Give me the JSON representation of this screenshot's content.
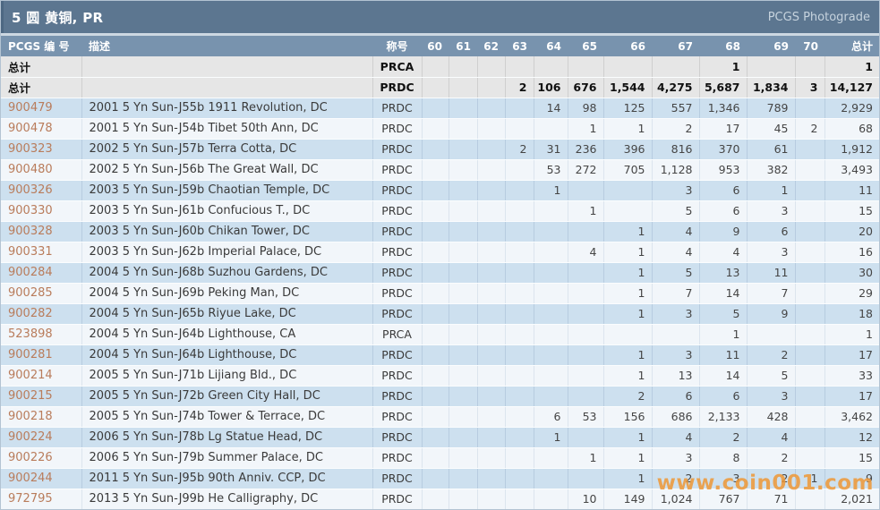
{
  "title": "5 圆 黄铜, PR",
  "brand": "PCGS Photograde",
  "watermark": "www.coin001.com",
  "colors": {
    "titlebar": "#5c7690",
    "header": "#7893ae",
    "row_blue": "#cde0ef",
    "row_light": "#f2f6fa",
    "summary_bg": "#e6e6e6",
    "pcgs_link": "#b97c5b",
    "watermark": "#ef9836"
  },
  "table": {
    "headers": [
      "PCGS 编 号",
      "描述",
      "称号",
      "60",
      "61",
      "62",
      "63",
      "64",
      "65",
      "66",
      "67",
      "68",
      "69",
      "70",
      "总计"
    ],
    "grade_columns": [
      "60",
      "61",
      "62",
      "63",
      "64",
      "65",
      "66",
      "67",
      "68",
      "69",
      "70"
    ],
    "summary_rows": [
      {
        "label": "总计",
        "desc": "",
        "designation": "PRCA",
        "grades": [
          "",
          "",
          "",
          "",
          "",
          "",
          "",
          "",
          "1",
          "",
          ""
        ],
        "total": "1"
      },
      {
        "label": "总计",
        "desc": "",
        "designation": "PRDC",
        "grades": [
          "",
          "",
          "",
          "2",
          "106",
          "676",
          "1,544",
          "4,275",
          "5,687",
          "1,834",
          "3"
        ],
        "total": "14,127"
      }
    ],
    "rows": [
      {
        "pcgs": "900479",
        "desc": "2001 5 Yn Sun-J55b 1911 Revolution, DC",
        "designation": "PRDC",
        "grades": [
          "",
          "",
          "",
          "",
          "14",
          "98",
          "125",
          "557",
          "1,346",
          "789",
          ""
        ],
        "total": "2,929"
      },
      {
        "pcgs": "900478",
        "desc": "2001 5 Yn Sun-J54b Tibet 50th Ann, DC",
        "designation": "PRDC",
        "grades": [
          "",
          "",
          "",
          "",
          "",
          "1",
          "1",
          "2",
          "17",
          "45",
          "2"
        ],
        "total": "68"
      },
      {
        "pcgs": "900323",
        "desc": "2002 5 Yn Sun-J57b Terra Cotta, DC",
        "designation": "PRDC",
        "grades": [
          "",
          "",
          "",
          "2",
          "31",
          "236",
          "396",
          "816",
          "370",
          "61",
          ""
        ],
        "total": "1,912"
      },
      {
        "pcgs": "900480",
        "desc": "2002 5 Yn Sun-J56b The Great Wall, DC",
        "designation": "PRDC",
        "grades": [
          "",
          "",
          "",
          "",
          "53",
          "272",
          "705",
          "1,128",
          "953",
          "382",
          ""
        ],
        "total": "3,493"
      },
      {
        "pcgs": "900326",
        "desc": "2003 5 Yn Sun-J59b Chaotian Temple, DC",
        "designation": "PRDC",
        "grades": [
          "",
          "",
          "",
          "",
          "1",
          "",
          "",
          "3",
          "6",
          "1",
          ""
        ],
        "total": "11"
      },
      {
        "pcgs": "900330",
        "desc": "2003 5 Yn Sun-J61b Confucious T., DC",
        "designation": "PRDC",
        "grades": [
          "",
          "",
          "",
          "",
          "",
          "1",
          "",
          "5",
          "6",
          "3",
          ""
        ],
        "total": "15"
      },
      {
        "pcgs": "900328",
        "desc": "2003 5 Yn Sun-J60b Chikan Tower, DC",
        "designation": "PRDC",
        "grades": [
          "",
          "",
          "",
          "",
          "",
          "",
          "1",
          "4",
          "9",
          "6",
          ""
        ],
        "total": "20"
      },
      {
        "pcgs": "900331",
        "desc": "2003 5 Yn Sun-J62b Imperial Palace, DC",
        "designation": "PRDC",
        "grades": [
          "",
          "",
          "",
          "",
          "",
          "4",
          "1",
          "4",
          "4",
          "3",
          ""
        ],
        "total": "16"
      },
      {
        "pcgs": "900284",
        "desc": "2004 5 Yn Sun-J68b Suzhou Gardens, DC",
        "designation": "PRDC",
        "grades": [
          "",
          "",
          "",
          "",
          "",
          "",
          "1",
          "5",
          "13",
          "11",
          ""
        ],
        "total": "30"
      },
      {
        "pcgs": "900285",
        "desc": "2004 5 Yn Sun-J69b Peking Man, DC",
        "designation": "PRDC",
        "grades": [
          "",
          "",
          "",
          "",
          "",
          "",
          "1",
          "7",
          "14",
          "7",
          ""
        ],
        "total": "29"
      },
      {
        "pcgs": "900282",
        "desc": "2004 5 Yn Sun-J65b Riyue Lake, DC",
        "designation": "PRDC",
        "grades": [
          "",
          "",
          "",
          "",
          "",
          "",
          "1",
          "3",
          "5",
          "9",
          ""
        ],
        "total": "18"
      },
      {
        "pcgs": "523898",
        "desc": "2004 5 Yn Sun-J64b Lighthouse, CA",
        "designation": "PRCA",
        "grades": [
          "",
          "",
          "",
          "",
          "",
          "",
          "",
          "",
          "1",
          "",
          ""
        ],
        "total": "1"
      },
      {
        "pcgs": "900281",
        "desc": "2004 5 Yn Sun-J64b Lighthouse, DC",
        "designation": "PRDC",
        "grades": [
          "",
          "",
          "",
          "",
          "",
          "",
          "1",
          "3",
          "11",
          "2",
          ""
        ],
        "total": "17"
      },
      {
        "pcgs": "900214",
        "desc": "2005 5 Yn Sun-J71b Lijiang Bld., DC",
        "designation": "PRDC",
        "grades": [
          "",
          "",
          "",
          "",
          "",
          "",
          "1",
          "13",
          "14",
          "5",
          ""
        ],
        "total": "33"
      },
      {
        "pcgs": "900215",
        "desc": "2005 5 Yn Sun-J72b Green City Hall, DC",
        "designation": "PRDC",
        "grades": [
          "",
          "",
          "",
          "",
          "",
          "",
          "2",
          "6",
          "6",
          "3",
          ""
        ],
        "total": "17"
      },
      {
        "pcgs": "900218",
        "desc": "2005 5 Yn Sun-J74b Tower & Terrace, DC",
        "designation": "PRDC",
        "grades": [
          "",
          "",
          "",
          "",
          "6",
          "53",
          "156",
          "686",
          "2,133",
          "428",
          ""
        ],
        "total": "3,462"
      },
      {
        "pcgs": "900224",
        "desc": "2006 5 Yn Sun-J78b Lg Statue Head, DC",
        "designation": "PRDC",
        "grades": [
          "",
          "",
          "",
          "",
          "1",
          "",
          "1",
          "4",
          "2",
          "4",
          ""
        ],
        "total": "12"
      },
      {
        "pcgs": "900226",
        "desc": "2006 5 Yn Sun-J79b Summer Palace, DC",
        "designation": "PRDC",
        "grades": [
          "",
          "",
          "",
          "",
          "",
          "1",
          "1",
          "3",
          "8",
          "2",
          ""
        ],
        "total": "15"
      },
      {
        "pcgs": "900244",
        "desc": "2011 5 Yn Sun-J95b 90th Anniv. CCP, DC",
        "designation": "PRDC",
        "grades": [
          "",
          "",
          "",
          "",
          "",
          "",
          "1",
          "2",
          "3",
          "2",
          "1"
        ],
        "total": "9"
      },
      {
        "pcgs": "972795",
        "desc": "2013 5 Yn Sun-J99b He Calligraphy, DC",
        "designation": "PRDC",
        "grades": [
          "",
          "",
          "",
          "",
          "",
          "10",
          "149",
          "1,024",
          "767",
          "71",
          ""
        ],
        "total": "2,021"
      }
    ]
  }
}
